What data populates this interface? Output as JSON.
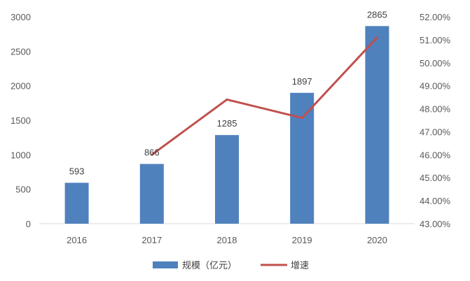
{
  "chart_data": {
    "type": "bar",
    "categories": [
      "2016",
      "2017",
      "2018",
      "2019",
      "2020"
    ],
    "series": [
      {
        "name": "规模（亿元）",
        "type": "bar",
        "axis": "left",
        "color": "#4f81bd",
        "values": [
          593,
          866,
          1285,
          1897,
          2865
        ],
        "labels": [
          "593",
          "866",
          "1285",
          "1897",
          "2865"
        ]
      },
      {
        "name": "增速",
        "type": "line",
        "axis": "right",
        "color": "#c0504d",
        "values": [
          null,
          46.0,
          48.4,
          47.6,
          51.1
        ]
      }
    ],
    "left_axis": {
      "min": 0,
      "max": 3000,
      "ticks": [
        "0",
        "500",
        "1000",
        "1500",
        "2000",
        "2500",
        "3000"
      ]
    },
    "right_axis": {
      "min": 43,
      "max": 52,
      "ticks": [
        "43.00%",
        "44.00%",
        "45.00%",
        "46.00%",
        "47.00%",
        "48.00%",
        "49.00%",
        "50.00%",
        "51.00%",
        "52.00%"
      ]
    },
    "grid": false,
    "legend_position": "bottom",
    "title": "",
    "xlabel": "",
    "ylabel": "",
    "y2label": ""
  }
}
